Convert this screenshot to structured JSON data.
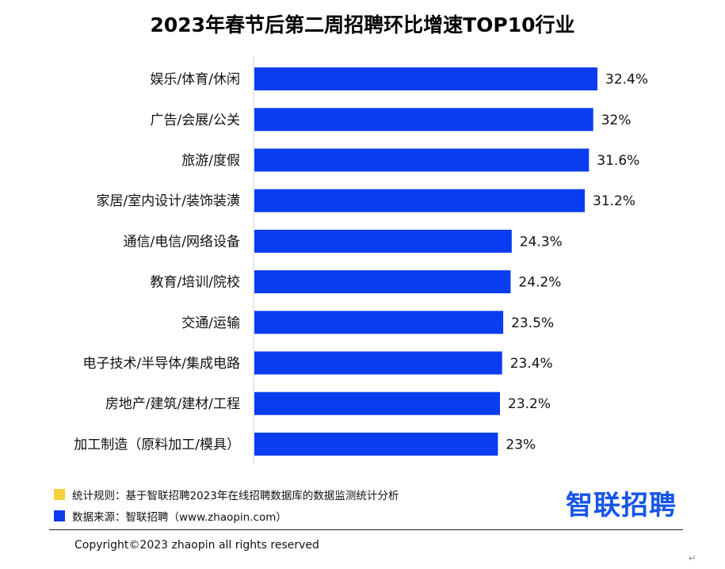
{
  "chart_data": {
    "type": "bar",
    "orientation": "horizontal",
    "title": "2023年春节后第二周招聘环比增速TOP10行业",
    "categories": [
      "娱乐/体育/休闲",
      "广告/会展/公关",
      "旅游/度假",
      "家居/室内设计/装饰装潢",
      "通信/电信/网络设备",
      "教育/培训/院校",
      "交通/运输",
      "电子技术/半导体/集成电路",
      "房地产/建筑/建材/工程",
      "加工制造（原料加工/模具）"
    ],
    "values": [
      32.4,
      32,
      31.6,
      31.2,
      24.3,
      24.2,
      23.5,
      23.4,
      23.2,
      23
    ],
    "value_labels": [
      "32.4%",
      "32%",
      "31.6%",
      "31.2%",
      "24.3%",
      "24.2%",
      "23.5%",
      "23.4%",
      "23.2%",
      "23%"
    ],
    "xlim": [
      0,
      32.4
    ],
    "bar_color": "#0a3cf0",
    "grid": false
  },
  "notes": {
    "rule_color": "#f7cf3b",
    "rule_text": "统计规则：基于智联招聘2023年在线招聘数据库的数据监测统计分析",
    "source_color": "#0a3cf0",
    "source_text": "数据来源：智联招聘（www.zhaopin.com）"
  },
  "brand": {
    "logo_text": "智联招聘",
    "color": "#1655e8"
  },
  "footer": {
    "copyright": "Copyright©2023 zhaopin all rights reserved",
    "return_mark": "↵"
  }
}
